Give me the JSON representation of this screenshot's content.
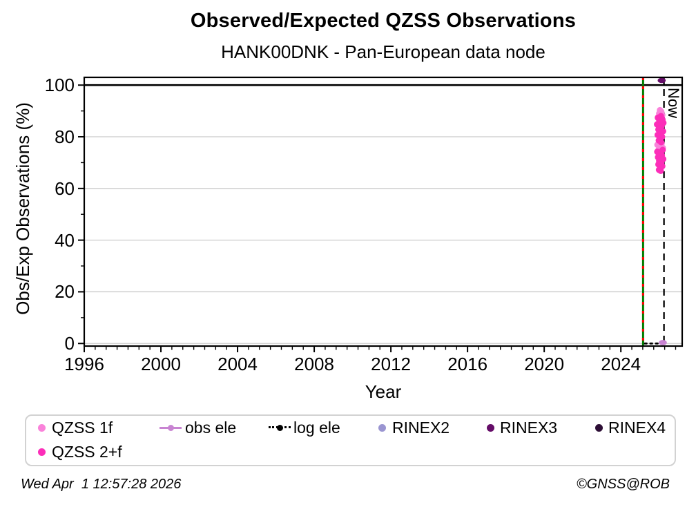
{
  "footer": {
    "timestamp": "Wed Apr  1 12:57:28 2026",
    "credit": "©GNSS@ROB"
  },
  "chart_data": {
    "type": "scatter",
    "title": "Observed/Expected QZSS Observations",
    "subtitle": "HANK00DNK - Pan-European data node",
    "xlabel": "Year",
    "ylabel": "Obs/Exp Observations (%)",
    "xlim": [
      1996,
      2027.2
    ],
    "ylim": [
      -1,
      103
    ],
    "xticks": [
      1996,
      2000,
      2004,
      2008,
      2012,
      2016,
      2020,
      2024
    ],
    "yticks": [
      0,
      20,
      40,
      60,
      80,
      100
    ],
    "grid": {
      "horizontal": true,
      "vertical": false,
      "color": "#cbcbcb"
    },
    "reference_lines": [
      {
        "name": "expected-100",
        "y": 100,
        "style": "solid",
        "color": "#000000"
      },
      {
        "name": "station-start",
        "x": 2025.16,
        "style": "green-with-red-dashes",
        "colors": [
          "#007d00",
          "#ff0000"
        ]
      },
      {
        "name": "now",
        "x": 2026.25,
        "style": "dashed",
        "color": "#000000",
        "label": "Now"
      }
    ],
    "series": [
      {
        "name": "QZSS 1f",
        "color": "#FA82DA",
        "marker": "circle",
        "points": [
          [
            2026.04,
            90.3
          ],
          [
            2026.11,
            89.7
          ],
          [
            2026.0,
            89.0
          ],
          [
            2026.16,
            88.4
          ],
          [
            2026.07,
            87.8
          ],
          [
            2025.95,
            87.2
          ],
          [
            2026.13,
            77.5
          ],
          [
            2025.91,
            76.9
          ],
          [
            2026.02,
            76.3
          ],
          [
            2026.19,
            75.7
          ],
          [
            2025.97,
            75.0
          ]
        ]
      },
      {
        "name": "QZSS 2+f",
        "color": "#FC2EB9",
        "marker": "circle",
        "points": [
          [
            2026.09,
            88.0
          ],
          [
            2025.93,
            87.4
          ],
          [
            2026.17,
            86.7
          ],
          [
            2026.01,
            86.1
          ],
          [
            2026.22,
            85.4
          ],
          [
            2025.89,
            84.8
          ],
          [
            2026.12,
            84.1
          ],
          [
            2026.05,
            83.4
          ],
          [
            2025.96,
            82.8
          ],
          [
            2026.2,
            82.1
          ],
          [
            2026.08,
            81.4
          ],
          [
            2025.92,
            80.7
          ],
          [
            2026.15,
            80.0
          ],
          [
            2026.03,
            79.3
          ],
          [
            2025.98,
            78.6
          ],
          [
            2026.1,
            77.9
          ],
          [
            2026.18,
            74.9
          ],
          [
            2025.9,
            74.2
          ],
          [
            2026.06,
            73.5
          ],
          [
            2026.14,
            72.8
          ],
          [
            2025.94,
            72.1
          ],
          [
            2026.21,
            71.4
          ],
          [
            2026.0,
            70.7
          ],
          [
            2026.11,
            70.0
          ],
          [
            2025.96,
            69.3
          ],
          [
            2026.16,
            68.6
          ],
          [
            2026.04,
            67.9
          ],
          [
            2025.99,
            67.2
          ],
          [
            2026.08,
            66.8
          ]
        ]
      },
      {
        "name": "obs ele",
        "color": "#C884D2",
        "marker": "ellipse",
        "points": [
          [
            2026.19,
            0.35
          ]
        ]
      },
      {
        "name": "log ele",
        "color": "#000000",
        "marker": "dotted-line",
        "points": [
          [
            2025.25,
            0
          ],
          [
            2026.08,
            0
          ]
        ]
      },
      {
        "name": "RINEX2",
        "color": "#9A95D1",
        "marker": "circle",
        "points": []
      },
      {
        "name": "RINEX3",
        "color": "#650D68",
        "marker": "ellipse",
        "points": [
          [
            2026.13,
            101.8
          ]
        ]
      },
      {
        "name": "RINEX4",
        "color": "#2D0E35",
        "marker": "circle",
        "points": []
      }
    ],
    "legend": {
      "position": "bottom",
      "entries": [
        "QZSS 1f",
        "obs ele",
        "log ele",
        "RINEX2",
        "RINEX3",
        "RINEX4",
        "QZSS 2+f"
      ]
    }
  }
}
